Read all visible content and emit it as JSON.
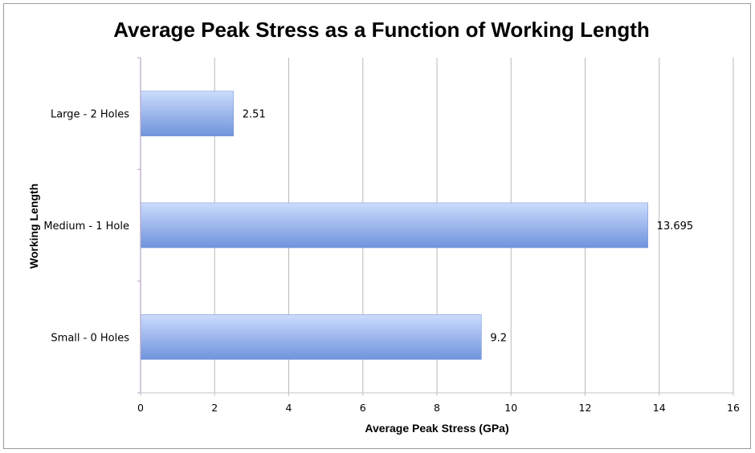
{
  "chart_data": {
    "type": "bar",
    "orientation": "horizontal",
    "title": "Average Peak Stress as a Function of Working Length",
    "xlabel": "Average Peak Stress (GPa)",
    "ylabel": "Working Length",
    "categories": [
      "Large - 2 Holes",
      "Medium - 1 Hole",
      "Small - 0 Holes"
    ],
    "values": [
      2.51,
      13.695,
      9.2
    ],
    "data_labels": [
      "2.51",
      "13.695",
      "9.2"
    ],
    "xlim": [
      0,
      16
    ],
    "xticks": [
      "0",
      "2",
      "4",
      "6",
      "8",
      "10",
      "12",
      "14",
      "16"
    ],
    "grid": "vertical",
    "legend": "none",
    "colors": {
      "bar_light": "#ccdcfd",
      "bar_dark": "#6f93dc",
      "axis": "#b5a3c4",
      "grid": "#b8b8b8"
    }
  }
}
